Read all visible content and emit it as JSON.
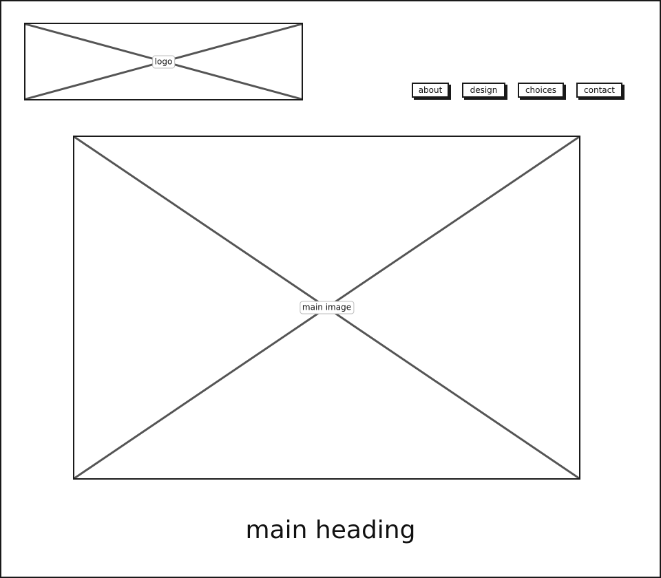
{
  "header": {
    "logo": {
      "label": "logo"
    }
  },
  "nav": {
    "items": [
      {
        "label": "about"
      },
      {
        "label": "design"
      },
      {
        "label": "choices"
      },
      {
        "label": "contact"
      }
    ]
  },
  "main": {
    "image": {
      "label": "main image"
    },
    "heading": "main heading"
  },
  "colors": {
    "border": "#1a1a1a",
    "placeholder_cross": "#555555",
    "background": "#ffffff"
  }
}
